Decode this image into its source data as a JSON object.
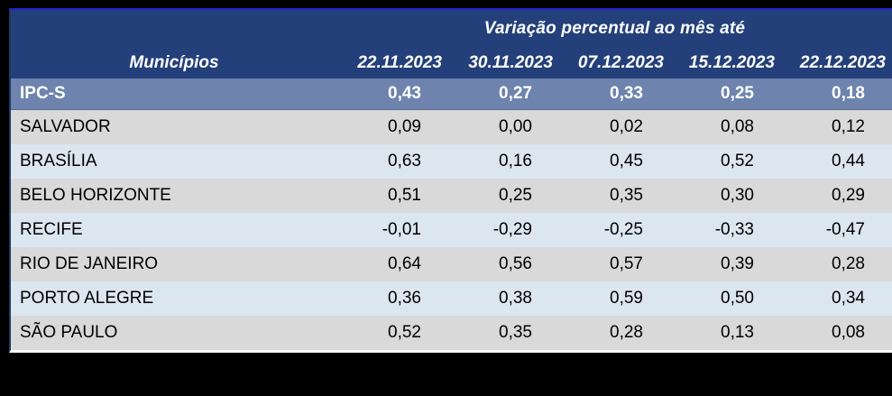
{
  "table": {
    "group_header": "Variação percentual ao mês até",
    "col1_header": "Municípios",
    "date_columns": [
      "22.11.2023",
      "30.11.2023",
      "07.12.2023",
      "15.12.2023",
      "22.12.2023"
    ],
    "summary_row": {
      "label": "IPC-S",
      "values": [
        "0,43",
        "0,27",
        "0,33",
        "0,25",
        "0,18"
      ]
    },
    "rows": [
      {
        "label": "SALVADOR",
        "values": [
          "0,09",
          "0,00",
          "0,02",
          "0,08",
          "0,12"
        ]
      },
      {
        "label": "BRASÍLIA",
        "values": [
          "0,63",
          "0,16",
          "0,45",
          "0,52",
          "0,44"
        ]
      },
      {
        "label": "BELO HORIZONTE",
        "values": [
          "0,51",
          "0,25",
          "0,35",
          "0,30",
          "0,29"
        ]
      },
      {
        "label": "RECIFE",
        "values": [
          "-0,01",
          "-0,29",
          "-0,25",
          "-0,33",
          "-0,47"
        ]
      },
      {
        "label": "RIO DE JANEIRO",
        "values": [
          "0,64",
          "0,56",
          "0,57",
          "0,39",
          "0,28"
        ]
      },
      {
        "label": "PORTO ALEGRE",
        "values": [
          "0,36",
          "0,38",
          "0,59",
          "0,50",
          "0,34"
        ]
      },
      {
        "label": "SÃO PAULO",
        "values": [
          "0,52",
          "0,35",
          "0,28",
          "0,13",
          "0,08"
        ]
      }
    ]
  },
  "colors": {
    "top-line": "#2222cc",
    "side-line": "#1f3864",
    "bottom-line": "#ffffff",
    "header-bg": "#24407a",
    "header-text": "#ffffff",
    "summary-bg": "#6e84ae",
    "summary-text": "#ffffff",
    "row-gray": "#d9d9d9",
    "row-blue": "#dce6f1"
  },
  "chart_data": {
    "type": "table",
    "title": "Variação percentual ao mês até",
    "columns": [
      "Municípios",
      "22.11.2023",
      "30.11.2023",
      "07.12.2023",
      "15.12.2023",
      "22.12.2023"
    ],
    "rows": [
      [
        "IPC-S",
        0.43,
        0.27,
        0.33,
        0.25,
        0.18
      ],
      [
        "SALVADOR",
        0.09,
        0.0,
        0.02,
        0.08,
        0.12
      ],
      [
        "BRASÍLIA",
        0.63,
        0.16,
        0.45,
        0.52,
        0.44
      ],
      [
        "BELO HORIZONTE",
        0.51,
        0.25,
        0.35,
        0.3,
        0.29
      ],
      [
        "RECIFE",
        -0.01,
        -0.29,
        -0.25,
        -0.33,
        -0.47
      ],
      [
        "RIO DE JANEIRO",
        0.64,
        0.56,
        0.57,
        0.39,
        0.28
      ],
      [
        "PORTO ALEGRE",
        0.36,
        0.38,
        0.59,
        0.5,
        0.34
      ],
      [
        "SÃO PAULO",
        0.52,
        0.35,
        0.28,
        0.13,
        0.08
      ]
    ],
    "layout_hints": {
      "summary_row_index": 0,
      "decimal_separator": ",",
      "last_column_clipped_at_right_edge": true
    }
  }
}
